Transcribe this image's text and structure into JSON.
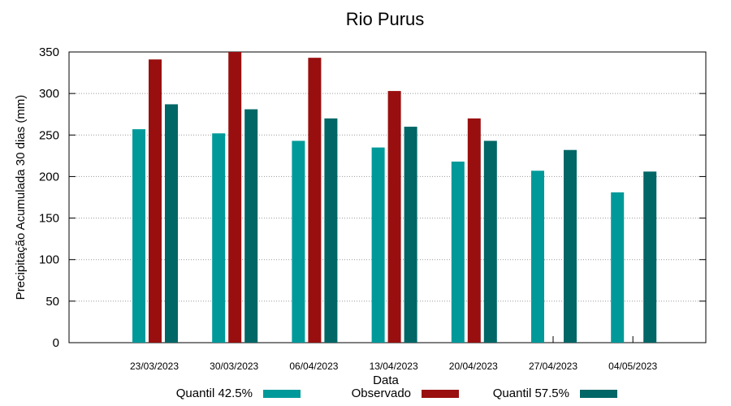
{
  "chart_data": {
    "type": "bar",
    "title": "Rio Purus",
    "xlabel": "Data",
    "ylabel": "Precipitação Acumulada 30 dias (mm)",
    "ylim": [
      0,
      350
    ],
    "yticks": [
      0,
      50,
      100,
      150,
      200,
      250,
      300,
      350
    ],
    "grid": true,
    "legend_position": "bottom",
    "categories": [
      "23/03/2023",
      "30/03/2023",
      "06/04/2023",
      "13/04/2023",
      "20/04/2023",
      "27/04/2023",
      "04/05/2023"
    ],
    "series": [
      {
        "name": "Quantil 42.5%",
        "color": "#009999",
        "values": [
          257,
          252,
          243,
          235,
          218,
          207,
          181
        ]
      },
      {
        "name": "Observado",
        "color": "#990f0f",
        "values": [
          341,
          350,
          343,
          303,
          270,
          null,
          null
        ]
      },
      {
        "name": "Quantil 57.5%",
        "color": "#006666",
        "values": [
          287,
          281,
          270,
          260,
          243,
          232,
          206
        ]
      }
    ]
  }
}
